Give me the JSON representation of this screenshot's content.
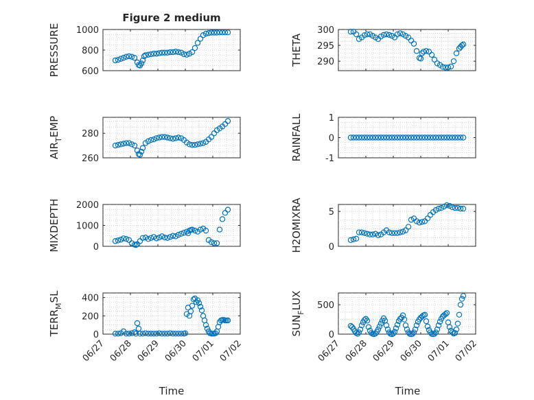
{
  "figure": {
    "title": "Figure 2 medium",
    "xlabel": "Time",
    "marker_color": "#0072BD"
  },
  "chart_data": [
    {
      "type": "scatter",
      "ylabel": "PRESSURE",
      "ylim": [
        600,
        1000
      ],
      "yticks": [
        600,
        800,
        1000
      ],
      "series": [
        {
          "x": [
            0.45,
            0.55,
            0.65,
            0.75,
            0.85,
            0.95,
            1.05,
            1.15,
            1.25,
            1.3,
            1.35,
            1.4,
            1.45,
            1.5,
            1.55,
            1.65,
            1.75,
            1.85,
            1.95,
            2.05,
            2.15,
            2.25,
            2.35,
            2.45,
            2.55,
            2.65,
            2.75,
            2.85,
            2.95,
            3.05,
            3.15,
            3.25,
            3.35,
            3.45,
            3.55,
            3.65,
            3.75,
            3.85,
            3.95,
            4.05,
            4.15,
            4.25,
            4.35,
            4.45,
            4.55
          ],
          "y": [
            700,
            705,
            715,
            725,
            735,
            740,
            735,
            725,
            680,
            655,
            650,
            670,
            700,
            740,
            750,
            755,
            760,
            765,
            765,
            770,
            775,
            775,
            775,
            780,
            780,
            785,
            780,
            775,
            760,
            755,
            765,
            780,
            820,
            870,
            910,
            945,
            960,
            965,
            970,
            970,
            970,
            972,
            972,
            972,
            972
          ]
        }
      ]
    },
    {
      "type": "scatter",
      "ylabel": "THETA",
      "ylim": [
        287,
        300
      ],
      "yticks": [
        290,
        295,
        300
      ],
      "series": [
        {
          "x": [
            0.45,
            0.55,
            0.65,
            0.75,
            0.85,
            0.95,
            1.05,
            1.15,
            1.25,
            1.35,
            1.45,
            1.55,
            1.65,
            1.75,
            1.85,
            1.95,
            2.05,
            2.15,
            2.25,
            2.35,
            2.45,
            2.55,
            2.65,
            2.75,
            2.85,
            2.95,
            3.0,
            3.05,
            3.1,
            3.2,
            3.3,
            3.4,
            3.5,
            3.6,
            3.7,
            3.8,
            3.9,
            4.0,
            4.1,
            4.2,
            4.3,
            4.4,
            4.45,
            4.5,
            4.55
          ],
          "y": [
            299.3,
            299.3,
            298.5,
            297.0,
            297.5,
            298.2,
            298.5,
            298.5,
            298.0,
            297.5,
            297.0,
            297.8,
            298.3,
            298.5,
            298.3,
            298.0,
            297.5,
            298.5,
            298.8,
            298.5,
            298.0,
            297.5,
            296.5,
            295.5,
            293.2,
            291.0,
            290.8,
            292.5,
            293.0,
            293.2,
            293.0,
            292.0,
            290.5,
            289.3,
            288.8,
            288.2,
            288.0,
            288.0,
            288.3,
            290.0,
            292.5,
            294.0,
            294.5,
            295.0,
            295.3
          ]
        }
      ]
    },
    {
      "type": "scatter",
      "ylabel": "AIR_TEMP",
      "ylim": [
        260,
        293
      ],
      "yticks": [
        260,
        280
      ],
      "series": [
        {
          "x": [
            0.45,
            0.55,
            0.65,
            0.75,
            0.85,
            0.95,
            1.05,
            1.15,
            1.25,
            1.3,
            1.35,
            1.4,
            1.45,
            1.55,
            1.65,
            1.75,
            1.85,
            1.95,
            2.05,
            2.15,
            2.25,
            2.35,
            2.45,
            2.55,
            2.65,
            2.75,
            2.85,
            2.95,
            3.05,
            3.15,
            3.25,
            3.35,
            3.45,
            3.55,
            3.65,
            3.75,
            3.85,
            3.95,
            4.05,
            4.15,
            4.25,
            4.35,
            4.45,
            4.55
          ],
          "y": [
            270,
            270.5,
            271,
            271.5,
            272,
            272,
            271,
            270,
            266,
            263,
            262.5,
            265,
            268,
            272,
            273.5,
            274.5,
            275,
            276,
            276.5,
            277,
            277,
            276.5,
            276,
            275.5,
            276,
            276.5,
            276,
            274.5,
            272.5,
            271,
            270.5,
            270.5,
            271,
            271.5,
            272,
            273,
            275,
            277,
            280,
            282.5,
            284,
            285.5,
            287.5,
            290
          ]
        }
      ]
    },
    {
      "type": "scatter",
      "ylabel": "RAINFALL",
      "ylim": [
        -1,
        1
      ],
      "yticks": [
        -1,
        0,
        1
      ],
      "series": [
        {
          "x": [
            0.45,
            0.55,
            0.65,
            0.75,
            0.85,
            0.95,
            1.05,
            1.15,
            1.25,
            1.35,
            1.45,
            1.55,
            1.65,
            1.75,
            1.85,
            1.95,
            2.05,
            2.15,
            2.25,
            2.35,
            2.45,
            2.55,
            2.65,
            2.75,
            2.85,
            2.95,
            3.05,
            3.15,
            3.25,
            3.35,
            3.45,
            3.55,
            3.65,
            3.75,
            3.85,
            3.95,
            4.05,
            4.15,
            4.25,
            4.35,
            4.45,
            4.55
          ],
          "y": [
            0,
            0,
            0,
            0,
            0,
            0,
            0,
            0,
            0,
            0,
            0,
            0,
            0,
            0,
            0,
            0,
            0,
            0,
            0,
            0,
            0,
            0,
            0,
            0,
            0,
            0,
            0,
            0,
            0,
            0,
            0,
            0,
            0,
            0,
            0,
            0,
            0,
            0,
            0,
            0,
            0,
            0
          ]
        }
      ]
    },
    {
      "type": "scatter",
      "ylabel": "MIXDEPTH",
      "ylim": [
        0,
        2000
      ],
      "yticks": [
        0,
        1000,
        2000
      ],
      "series": [
        {
          "x": [
            0.45,
            0.55,
            0.65,
            0.75,
            0.85,
            0.95,
            1.05,
            1.15,
            1.2,
            1.25,
            1.35,
            1.45,
            1.55,
            1.65,
            1.75,
            1.85,
            1.95,
            2.05,
            2.15,
            2.25,
            2.35,
            2.45,
            2.55,
            2.65,
            2.75,
            2.85,
            2.95,
            3.05,
            3.1,
            3.15,
            3.2,
            3.25,
            3.35,
            3.45,
            3.55,
            3.65,
            3.75,
            3.85,
            3.95,
            4.05,
            4.15,
            4.25,
            4.35,
            4.45,
            4.55
          ],
          "y": [
            250,
            280,
            320,
            380,
            350,
            300,
            150,
            80,
            60,
            100,
            250,
            400,
            420,
            350,
            400,
            450,
            380,
            420,
            480,
            420,
            400,
            450,
            500,
            480,
            550,
            600,
            650,
            700,
            620,
            750,
            780,
            800,
            750,
            700,
            800,
            850,
            750,
            300,
            200,
            150,
            150,
            800,
            1300,
            1600,
            1750
          ]
        }
      ]
    },
    {
      "type": "scatter",
      "ylabel": "H2OMIXRA",
      "ylim": [
        0,
        6
      ],
      "yticks": [
        0,
        5
      ],
      "series": [
        {
          "x": [
            0.45,
            0.55,
            0.65,
            0.75,
            0.85,
            0.95,
            1.05,
            1.15,
            1.25,
            1.35,
            1.45,
            1.55,
            1.65,
            1.75,
            1.85,
            1.95,
            2.05,
            2.15,
            2.25,
            2.35,
            2.45,
            2.55,
            2.65,
            2.75,
            2.85,
            2.95,
            3.05,
            3.15,
            3.25,
            3.35,
            3.45,
            3.55,
            3.65,
            3.75,
            3.85,
            3.95,
            4.05,
            4.15,
            4.25,
            4.35,
            4.45,
            4.55
          ],
          "y": [
            0.9,
            1.0,
            1.1,
            2.0,
            2.0,
            1.9,
            1.8,
            1.7,
            1.7,
            1.8,
            1.6,
            1.7,
            2.0,
            2.3,
            2.0,
            1.9,
            1.9,
            1.9,
            2.0,
            2.1,
            2.3,
            2.8,
            3.8,
            4.0,
            3.6,
            3.4,
            3.5,
            3.6,
            4.0,
            4.5,
            4.9,
            5.2,
            5.4,
            5.5,
            5.7,
            5.9,
            5.8,
            5.6,
            5.5,
            5.5,
            5.4,
            5.4
          ]
        }
      ]
    },
    {
      "type": "scatter",
      "ylabel": "TERR_MSL",
      "ylim": [
        0,
        450
      ],
      "yticks": [
        0,
        200,
        400
      ],
      "series": [
        {
          "x": [
            0.45,
            0.55,
            0.65,
            0.75,
            0.85,
            0.95,
            1.05,
            1.15,
            1.2,
            1.25,
            1.3,
            1.35,
            1.45,
            1.55,
            1.65,
            1.75,
            1.85,
            1.95,
            2.05,
            2.15,
            2.25,
            2.35,
            2.45,
            2.55,
            2.65,
            2.75,
            2.85,
            2.95,
            3.0,
            3.05,
            3.1,
            3.15,
            3.2,
            3.25,
            3.3,
            3.35,
            3.4,
            3.45,
            3.5,
            3.55,
            3.6,
            3.65,
            3.7,
            3.75,
            3.8,
            3.85,
            3.9,
            3.95,
            4.0,
            4.05,
            4.1,
            4.15,
            4.2,
            4.25,
            4.3,
            4.35,
            4.4,
            4.45,
            4.5,
            4.55
          ],
          "y": [
            5,
            5,
            10,
            30,
            5,
            5,
            10,
            20,
            5,
            120,
            60,
            5,
            5,
            10,
            5,
            5,
            5,
            5,
            10,
            5,
            5,
            5,
            10,
            5,
            5,
            5,
            5,
            5,
            10,
            220,
            290,
            200,
            250,
            310,
            380,
            390,
            350,
            370,
            340,
            300,
            260,
            200,
            150,
            100,
            60,
            30,
            10,
            5,
            5,
            5,
            10,
            30,
            80,
            130,
            150,
            155,
            155,
            150,
            150,
            150
          ]
        }
      ]
    },
    {
      "type": "scatter",
      "ylabel": "SUN_FLUX",
      "ylim": [
        0,
        700
      ],
      "yticks": [
        0,
        500
      ],
      "series": [
        {
          "x": [
            0.45,
            0.5,
            0.55,
            0.6,
            0.65,
            0.7,
            0.75,
            0.8,
            0.85,
            0.9,
            0.95,
            1.0,
            1.05,
            1.1,
            1.15,
            1.2,
            1.25,
            1.3,
            1.35,
            1.4,
            1.45,
            1.5,
            1.55,
            1.6,
            1.65,
            1.7,
            1.75,
            1.8,
            1.85,
            1.9,
            1.95,
            2.0,
            2.05,
            2.1,
            2.15,
            2.2,
            2.25,
            2.3,
            2.35,
            2.4,
            2.45,
            2.5,
            2.55,
            2.6,
            2.65,
            2.7,
            2.75,
            2.8,
            2.85,
            2.9,
            2.95,
            3.0,
            3.05,
            3.1,
            3.15,
            3.2,
            3.25,
            3.3,
            3.35,
            3.4,
            3.45,
            3.5,
            3.55,
            3.6,
            3.65,
            3.7,
            3.75,
            3.8,
            3.85,
            3.9,
            3.95,
            4.0,
            4.05,
            4.1,
            4.15,
            4.2,
            4.25,
            4.3,
            4.35,
            4.4,
            4.45,
            4.5,
            4.55
          ],
          "y": [
            140,
            120,
            90,
            50,
            20,
            5,
            30,
            80,
            150,
            200,
            240,
            260,
            230,
            120,
            60,
            20,
            5,
            0,
            10,
            40,
            80,
            130,
            180,
            230,
            270,
            230,
            150,
            80,
            30,
            5,
            0,
            10,
            40,
            100,
            160,
            220,
            260,
            280,
            320,
            250,
            150,
            80,
            30,
            5,
            0,
            5,
            30,
            80,
            150,
            210,
            250,
            280,
            300,
            320,
            330,
            220,
            130,
            70,
            30,
            5,
            0,
            5,
            30,
            80,
            150,
            210,
            260,
            300,
            320,
            340,
            360,
            200,
            120,
            60,
            30,
            10,
            20,
            80,
            180,
            330,
            500,
            600,
            650
          ]
        }
      ]
    }
  ],
  "x_axis": {
    "xlim": [
      0,
      5
    ],
    "tick_values": [
      0,
      1,
      2,
      3,
      4,
      5
    ],
    "tick_labels": [
      "06/27",
      "06/28",
      "06/29",
      "06/30",
      "07/01",
      "07/02"
    ]
  }
}
